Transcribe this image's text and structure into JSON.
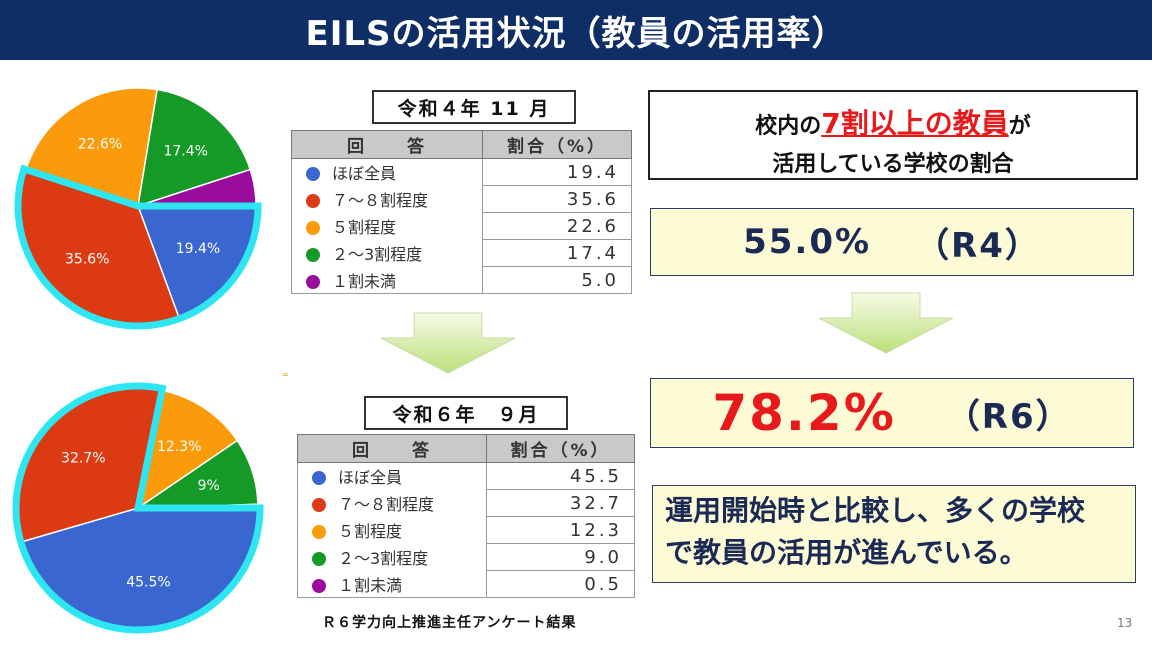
{
  "header": {
    "title": "EILSの活用状況（教員の活用率）"
  },
  "colors": {
    "blue": "#3a66cf",
    "red": "#dc3a12",
    "orange": "#fb9a0a",
    "green": "#159a28",
    "purple": "#9a0c9c",
    "highlight": "#2ee6f2",
    "navy": "#0f2e66",
    "accent_red": "#e8191a"
  },
  "chart_data": [
    {
      "type": "pie",
      "title": "令和４年 11 月",
      "categories": [
        "ほぼ全員",
        "７～８割程度",
        "５割程度",
        "２～3割程度",
        "１割未満"
      ],
      "values": [
        19.4,
        35.6,
        22.6,
        17.4,
        5.0
      ],
      "labels": [
        "19.4%",
        "35.6%",
        "22.6%",
        "17.4%",
        ""
      ],
      "highlighted": [
        "ほぼ全員",
        "７～８割程度"
      ]
    },
    {
      "type": "pie",
      "title": "令和６年　９月",
      "categories": [
        "ほぼ全員",
        "７～８割程度",
        "５割程度",
        "２～3割程度",
        "１割未満"
      ],
      "values": [
        45.5,
        32.7,
        12.3,
        9.0,
        0.5
      ],
      "labels": [
        "45.5%",
        "32.7%",
        "12.3%",
        "9%",
        ""
      ],
      "highlighted": [
        "ほぼ全員",
        "７～８割程度"
      ]
    }
  ],
  "tables": {
    "header_answer": "回　　答",
    "header_ratio": "割合（%）",
    "r4": {
      "title": "令和４年 11 月",
      "rows": [
        {
          "label": "ほぼ全員",
          "value": "19.4"
        },
        {
          "label": "７～８割程度",
          "value": "35.6"
        },
        {
          "label": "５割程度",
          "value": "22.6"
        },
        {
          "label": "２～3割程度",
          "value": "17.4"
        },
        {
          "label": "１割未満",
          "value": "5.0"
        }
      ]
    },
    "r6": {
      "title": "令和６年　９月",
      "rows": [
        {
          "label": "ほぼ全員",
          "value": "45.5"
        },
        {
          "label": "７～８割程度",
          "value": "32.7"
        },
        {
          "label": "５割程度",
          "value": "12.3"
        },
        {
          "label": "２～3割程度",
          "value": "9.0"
        },
        {
          "label": "１割未満",
          "value": "0.5"
        }
      ]
    }
  },
  "question": {
    "pre": "校内の",
    "highlight": "7割以上の教員",
    "post": "が",
    "line2": "活用している学校の割合"
  },
  "result_r4": {
    "value": "55.0%",
    "tag": "（R4）"
  },
  "result_r6": {
    "value": "78.2%",
    "tag": "（R6）"
  },
  "conclusion": {
    "line1": "運用開始時と比較し、多くの学校",
    "line2": "で教員の活用が進んでいる。"
  },
  "source": "Ｒ６学力向上推進主任アンケート結果",
  "page_number": "13",
  "stray_mark": "="
}
